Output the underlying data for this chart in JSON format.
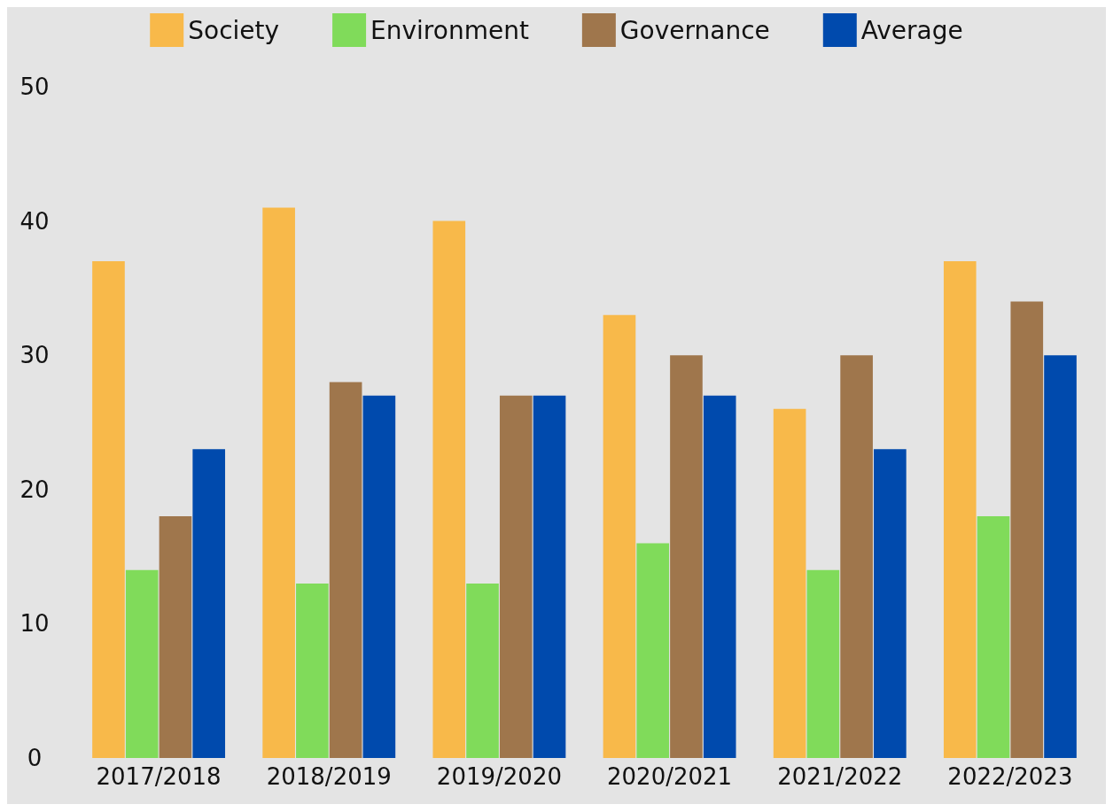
{
  "chart_data": {
    "type": "bar",
    "categories": [
      "2017/2018",
      "2018/2019",
      "2019/2020",
      "2020/2021",
      "2021/2022",
      "2022/2023"
    ],
    "series": [
      {
        "name": "Society",
        "color": "#f8b94a",
        "values": [
          37,
          41,
          40,
          33,
          26,
          37
        ]
      },
      {
        "name": "Environment",
        "color": "#80db5a",
        "values": [
          14,
          13,
          13,
          16,
          14,
          18
        ]
      },
      {
        "name": "Governance",
        "color": "#9f764c",
        "values": [
          18,
          28,
          27,
          30,
          30,
          34
        ]
      },
      {
        "name": "Average",
        "color": "#004aad",
        "values": [
          23,
          27,
          27,
          27,
          23,
          30
        ]
      }
    ],
    "ylim": [
      0,
      50
    ],
    "yticks": [
      0,
      10,
      20,
      30,
      40,
      50
    ],
    "grid": false,
    "legend": "top"
  }
}
